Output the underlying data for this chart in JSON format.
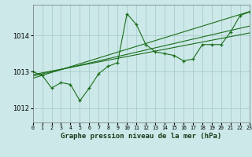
{
  "bg_color": "#cce8e8",
  "grid_color": "#aacccc",
  "line_color": "#1a6e1a",
  "title": "Graphe pression niveau de la mer (hPa)",
  "xlim": [
    0,
    23
  ],
  "ylim": [
    1011.6,
    1014.85
  ],
  "yticks": [
    1012,
    1013,
    1014
  ],
  "xtick_labels": [
    "0",
    "1",
    "2",
    "3",
    "4",
    "5",
    "6",
    "7",
    "8",
    "9",
    "10",
    "11",
    "12",
    "13",
    "14",
    "15",
    "16",
    "17",
    "18",
    "19",
    "20",
    "21",
    "22",
    "23"
  ],
  "series_jagged": [
    1013.0,
    1012.9,
    1012.55,
    1012.7,
    1012.65,
    1012.2,
    1012.55,
    1012.95,
    1013.15,
    1013.25,
    1014.6,
    1014.3,
    1013.75,
    1013.55,
    1013.5,
    1013.45,
    1013.3,
    1013.35,
    1013.75,
    1013.75,
    1013.75,
    1014.1,
    1014.55,
    1014.65
  ],
  "series_linear": [
    [
      1012.92,
      1012.97,
      1013.02,
      1013.07,
      1013.12,
      1013.17,
      1013.22,
      1013.27,
      1013.32,
      1013.37,
      1013.42,
      1013.47,
      1013.52,
      1013.57,
      1013.62,
      1013.67,
      1013.72,
      1013.77,
      1013.82,
      1013.87,
      1013.92,
      1013.97,
      1014.02,
      1014.07
    ],
    [
      1012.88,
      1012.94,
      1013.0,
      1013.06,
      1013.12,
      1013.18,
      1013.24,
      1013.3,
      1013.36,
      1013.42,
      1013.48,
      1013.54,
      1013.6,
      1013.66,
      1013.72,
      1013.78,
      1013.84,
      1013.9,
      1013.96,
      1014.02,
      1014.08,
      1014.14,
      1014.2,
      1014.26
    ],
    [
      1012.82,
      1012.9,
      1012.98,
      1013.06,
      1013.14,
      1013.22,
      1013.3,
      1013.38,
      1013.46,
      1013.54,
      1013.62,
      1013.7,
      1013.78,
      1013.86,
      1013.94,
      1014.02,
      1014.1,
      1014.18,
      1014.26,
      1014.34,
      1014.42,
      1014.5,
      1014.58,
      1014.66
    ]
  ]
}
